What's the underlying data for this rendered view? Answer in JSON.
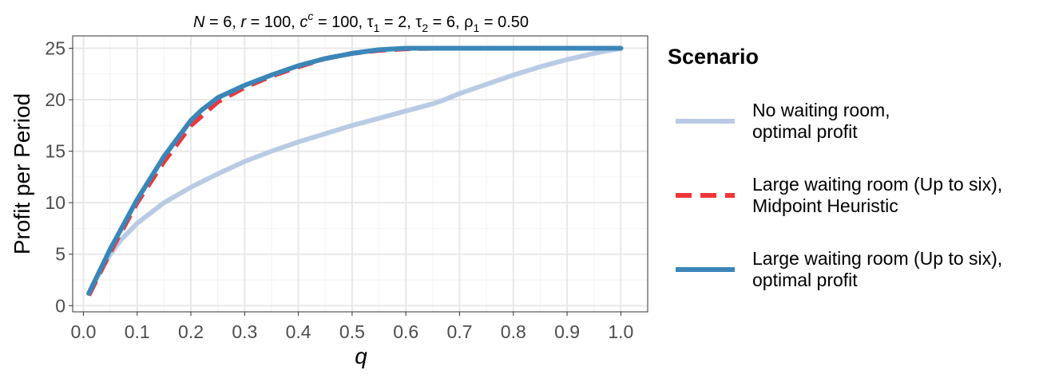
{
  "chart_data": {
    "type": "line",
    "title": "N = 6, r = 100, c^c = 100, τ1 = 2, τ2 = 6, ρ1 = 0.50",
    "title_parts": {
      "N": "N",
      "eq1": " = 6, ",
      "r": "r",
      "eq2": " = 100, ",
      "c": "c",
      "c_sup": "c",
      "eq3": " = 100, ",
      "tau": "τ",
      "tau1_sub": "1",
      "eq4": " = 2, ",
      "tau2": "τ",
      "tau2_sub": "2",
      "eq5": " = 6, ",
      "rho": "ρ",
      "rho1_sub": "1",
      "eq6": " = 0.50"
    },
    "xlabel": "q",
    "ylabel": "Profit per Period",
    "xlim": [
      -0.02,
      1.05
    ],
    "ylim": [
      -0.6,
      26.2
    ],
    "x_ticks": [
      0.0,
      0.1,
      0.2,
      0.3,
      0.4,
      0.5,
      0.6,
      0.7,
      0.8,
      0.9,
      1.0
    ],
    "x_tick_labels": [
      "0.0",
      "0.1",
      "0.2",
      "0.3",
      "0.4",
      "0.5",
      "0.6",
      "0.7",
      "0.8",
      "0.9",
      "1.0"
    ],
    "y_ticks": [
      0,
      5,
      10,
      15,
      20,
      25
    ],
    "y_tick_labels": [
      "0",
      "5",
      "10",
      "15",
      "20",
      "25"
    ],
    "grid": true,
    "legend": {
      "title": "Scenario",
      "position": "right"
    },
    "series": [
      {
        "name": "No waiting room, optimal profit",
        "label_lines": [
          "No waiting room,",
          "optimal profit"
        ],
        "color": "#b9cbe4",
        "dash": "solid",
        "x": [
          0.01,
          0.03,
          0.05,
          0.07,
          0.1,
          0.15,
          0.2,
          0.25,
          0.3,
          0.35,
          0.4,
          0.45,
          0.5,
          0.55,
          0.6,
          0.65,
          0.667,
          0.7,
          0.75,
          0.8,
          0.85,
          0.9,
          0.95,
          1.0
        ],
        "y": [
          1.2,
          3.2,
          5.0,
          6.4,
          8.0,
          10.0,
          11.5,
          12.8,
          14.0,
          15.0,
          15.9,
          16.7,
          17.5,
          18.2,
          18.9,
          19.6,
          19.9,
          20.6,
          21.5,
          22.4,
          23.2,
          23.9,
          24.5,
          25.0
        ]
      },
      {
        "name": "Large waiting room (Up to six), Midpoint Heuristic",
        "label_lines": [
          "Large waiting room (Up to six),",
          "Midpoint Heuristic"
        ],
        "color": "#f0353a",
        "dash": "dashed",
        "x": [
          0.01,
          0.05,
          0.1,
          0.15,
          0.2,
          0.25,
          0.3,
          0.35,
          0.4,
          0.45,
          0.5,
          0.55,
          0.6,
          0.65,
          0.7,
          0.8,
          0.9,
          1.0
        ],
        "y": [
          1.0,
          5.2,
          10.0,
          14.0,
          17.5,
          19.8,
          21.2,
          22.3,
          23.2,
          24.0,
          24.5,
          24.8,
          24.95,
          25.0,
          25.0,
          25.0,
          25.0,
          25.0
        ]
      },
      {
        "name": "Large waiting room (Up to six), optimal profit",
        "label_lines": [
          "Large waiting room (Up to six),",
          "optimal profit"
        ],
        "color": "#3a86b8",
        "dash": "solid",
        "x": [
          0.01,
          0.05,
          0.1,
          0.15,
          0.2,
          0.22,
          0.25,
          0.3,
          0.35,
          0.4,
          0.45,
          0.5,
          0.55,
          0.6,
          0.65,
          0.7,
          0.8,
          0.9,
          1.0
        ],
        "y": [
          1.2,
          5.5,
          10.3,
          14.5,
          18.0,
          19.0,
          20.2,
          21.4,
          22.4,
          23.3,
          24.0,
          24.5,
          24.85,
          25.0,
          25.0,
          25.0,
          25.0,
          25.0,
          25.0
        ]
      }
    ]
  }
}
